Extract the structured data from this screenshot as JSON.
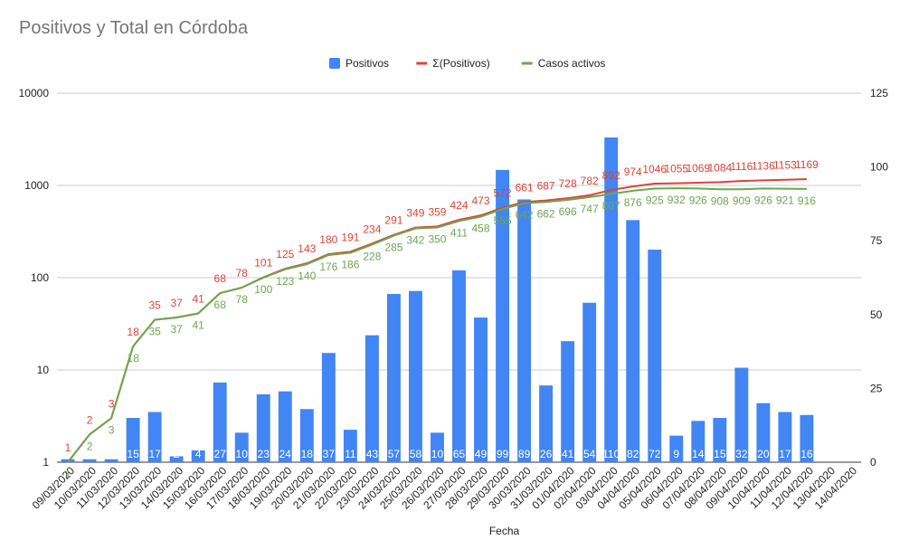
{
  "chart_data": {
    "type": "bar+line",
    "title": "Positivos y Total en Córdoba",
    "xlabel": "Fecha",
    "ylabel_left": "",
    "ylabel_right": "",
    "y_left_scale": "log",
    "y_left_lim": [
      1,
      10000
    ],
    "y_left_ticks": [
      "1",
      "10",
      "100",
      "1000",
      "10000"
    ],
    "y_right_lim": [
      0,
      125
    ],
    "y_right_ticks": [
      "0",
      "25",
      "50",
      "75",
      "100",
      "125"
    ],
    "grid": true,
    "legend_position": "top-center",
    "categories": [
      "09/03/2020",
      "10/03/2020",
      "11/03/2020",
      "12/03/2020",
      "13/03/2020",
      "14/03/2020",
      "15/03/2020",
      "16/03/2020",
      "17/03/2020",
      "18/03/2020",
      "19/03/2020",
      "20/03/2020",
      "21/03/2020",
      "22/03/2020",
      "23/03/2020",
      "24/03/2020",
      "25/03/2020",
      "26/03/2020",
      "27/03/2020",
      "28/03/2020",
      "29/03/2020",
      "30/03/2020",
      "31/03/2020",
      "01/04/2020",
      "02/04/2020",
      "03/04/2020",
      "04/04/2020",
      "05/04/2020",
      "06/04/2020",
      "07/04/2020",
      "08/04/2020",
      "09/04/2020",
      "10/04/2020",
      "11/04/2020",
      "12/04/2020",
      "13/04/2020",
      "14/04/2020"
    ],
    "series": [
      {
        "name": "Positivos",
        "kind": "bar",
        "axis": "right",
        "color": "#4285f4",
        "label_color": "#ffffff",
        "values": [
          1,
          1,
          1,
          15,
          17,
          2,
          4,
          27,
          10,
          23,
          24,
          18,
          37,
          11,
          43,
          57,
          58,
          10,
          65,
          49,
          99,
          89,
          26,
          41,
          54,
          110,
          82,
          72,
          9,
          14,
          15,
          32,
          20,
          17,
          16,
          null,
          null
        ],
        "labels": [
          "1",
          "1",
          "1",
          "15",
          "17",
          "2",
          "4",
          "27",
          "10",
          "23",
          "24",
          "18",
          "37",
          "11",
          "43",
          "57",
          "58",
          "10",
          "65",
          "49",
          "99",
          "89",
          "26",
          "41",
          "54",
          "110",
          "82",
          "72",
          "9",
          "14",
          "15",
          "32",
          "20",
          "17",
          "16",
          "",
          ""
        ]
      },
      {
        "name": "Σ(Positivos)",
        "kind": "line",
        "axis": "left",
        "color": "#db4437",
        "values": [
          1,
          2,
          3,
          18,
          35,
          37,
          41,
          68,
          78,
          101,
          125,
          143,
          180,
          191,
          234,
          291,
          349,
          359,
          424,
          473,
          572,
          661,
          687,
          728,
          782,
          892,
          974,
          1046,
          1055,
          1069,
          1084,
          1116,
          1136,
          1153,
          1169,
          null,
          null
        ],
        "labels": [
          "1",
          "2",
          "3",
          "18",
          "35",
          "37",
          "41",
          "68",
          "78",
          "101",
          "125",
          "143",
          "180",
          "191",
          "234",
          "291",
          "349",
          "359",
          "424",
          "473",
          "572",
          "661",
          "687",
          "728",
          "782",
          "892",
          "974",
          "1046",
          "1055",
          "1069",
          "1084",
          "1116",
          "1136",
          "1153",
          "1169",
          "",
          ""
        ]
      },
      {
        "name": "Casos activos",
        "kind": "line",
        "axis": "left",
        "color": "#6aa84f",
        "values": [
          1,
          2,
          3,
          18,
          35,
          37,
          41,
          68,
          78,
          100,
          123,
          140,
          176,
          186,
          228,
          285,
          342,
          350,
          411,
          458,
          555,
          642,
          662,
          696,
          747,
          807,
          876,
          925,
          932,
          926,
          908,
          909,
          926,
          921,
          916,
          null,
          null
        ],
        "labels": [
          "1",
          "2",
          "3",
          "18",
          "35",
          "37",
          "41",
          "68",
          "78",
          "100",
          "123",
          "140",
          "176",
          "186",
          "228",
          "285",
          "342",
          "350",
          "411",
          "458",
          "555",
          "642",
          "662",
          "696",
          "747",
          "807",
          "876",
          "925",
          "932",
          "926",
          "908",
          "909",
          "926",
          "921",
          "916",
          "",
          ""
        ]
      }
    ]
  }
}
